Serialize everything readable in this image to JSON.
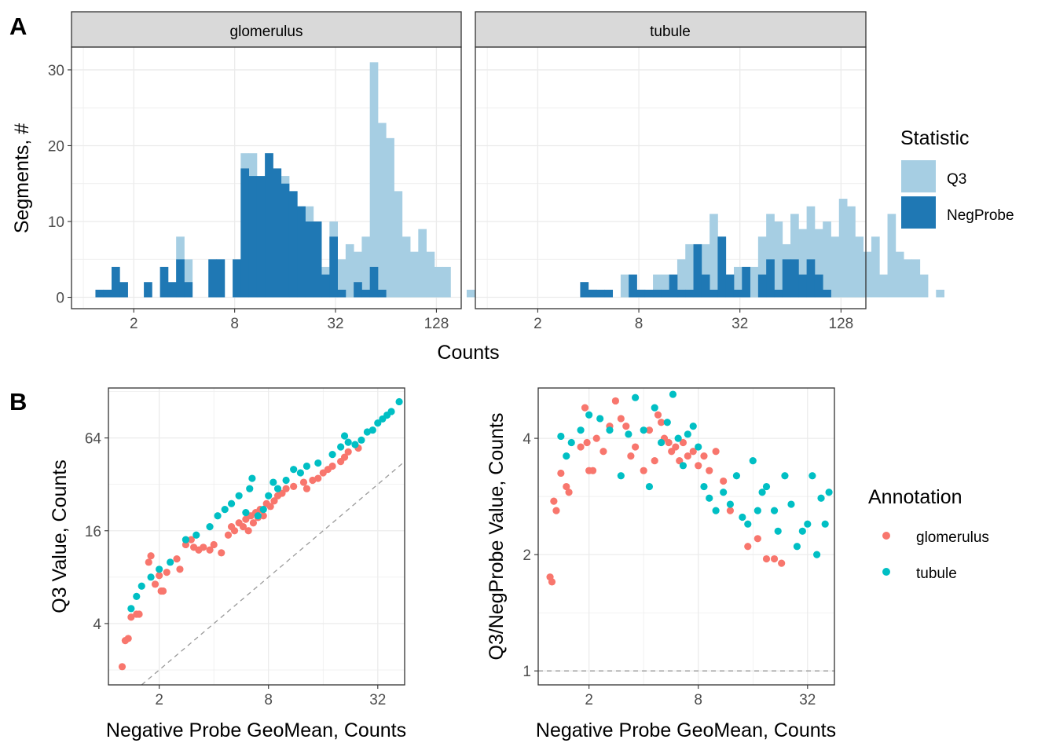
{
  "panel_tags": [
    "A",
    "B"
  ],
  "colors": {
    "Q3": "#a6cee3",
    "NegProbe": "#1f78b4",
    "glomerulus": "#f8766d",
    "tubule": "#00bfc4",
    "grid": "#ebebeb",
    "strip_bg": "#d9d9d9",
    "reference_line": "#999999"
  },
  "chart_data": [
    {
      "type": "histogram",
      "panel": "A",
      "xlabel": "Counts",
      "ylabel": "Segments, #",
      "x_scale": "log2",
      "xlim": [
        0.85,
        180
      ],
      "ylim": [
        -1.5,
        33
      ],
      "x_ticks": [
        2,
        8,
        32,
        128
      ],
      "y_ticks": [
        0,
        10,
        20,
        30
      ],
      "grid": true,
      "bin_log2_width": 0.16,
      "bin_log2_start": 0.24,
      "legend": {
        "title": "Statistic",
        "entries": [
          "Q3",
          "NegProbe"
        ],
        "position": "right"
      },
      "facets": [
        {
          "name": "glomerulus",
          "series": [
            {
              "name": "Q3",
              "counts": [
                0,
                0,
                0,
                0,
                0,
                0,
                0,
                0,
                0,
                0,
                8,
                5,
                0,
                0,
                5,
                5,
                0,
                0,
                19,
                19,
                15,
                19,
                17,
                16,
                14,
                12,
                12,
                10,
                4,
                10,
                5,
                7,
                6,
                8,
                31,
                23,
                21,
                14,
                8,
                6,
                9,
                6,
                4,
                4,
                0,
                0,
                1
              ]
            },
            {
              "name": "NegProbe",
              "counts": [
                1,
                1,
                4,
                2,
                0,
                0,
                2,
                0,
                4,
                2,
                5,
                2,
                0,
                0,
                5,
                5,
                0,
                5,
                17,
                16,
                16,
                19,
                17,
                15,
                14,
                12,
                10,
                10,
                3,
                8,
                1,
                0,
                2,
                1,
                4,
                1,
                0,
                0,
                0,
                0,
                0,
                0,
                0,
                0,
                0,
                0,
                0
              ]
            }
          ]
        },
        {
          "name": "tubule",
          "series": [
            {
              "name": "Q3",
              "counts": [
                0,
                0,
                0,
                0,
                0,
                0,
                0,
                0,
                0,
                0,
                2,
                1,
                0,
                0,
                0,
                3,
                1,
                1,
                0,
                3,
                3,
                2,
                5,
                7,
                5,
                7,
                11,
                8,
                3,
                4,
                4,
                4,
                8,
                11,
                10,
                7,
                11,
                9,
                12,
                9,
                10,
                8,
                13,
                12,
                8,
                6,
                8,
                3,
                11,
                6,
                5,
                5,
                3,
                0,
                1
              ]
            },
            {
              "name": "NegProbe",
              "counts": [
                0,
                0,
                0,
                0,
                0,
                0,
                0,
                0,
                0,
                0,
                2,
                1,
                1,
                1,
                0,
                0,
                3,
                1,
                1,
                1,
                1,
                3,
                1,
                1,
                7,
                3,
                1,
                8,
                3,
                1,
                4,
                0,
                3,
                5,
                1,
                5,
                5,
                3,
                5,
                3,
                1,
                0,
                0,
                0,
                0,
                0,
                0,
                0,
                0,
                0,
                0,
                0,
                0,
                0,
                0
              ]
            }
          ]
        }
      ]
    },
    {
      "type": "scatter",
      "panel": "B-left",
      "xlabel": "Negative Probe GeoMean, Counts",
      "ylabel": "Q3 Value, Counts",
      "x_scale": "log2",
      "y_scale": "log2",
      "xlim": [
        1.05,
        45
      ],
      "ylim": [
        1.6,
        135
      ],
      "x_ticks": [
        2,
        8,
        32
      ],
      "y_ticks": [
        4,
        16,
        64
      ],
      "grid": true,
      "reference_line": {
        "slope": 1,
        "intercept": 0,
        "style": "dashed"
      },
      "legend": {
        "title": "Annotation",
        "entries": [
          "glomerulus",
          "tubule"
        ],
        "position": "right"
      },
      "series": [
        {
          "name": "glomerulus",
          "points": [
            [
              1.25,
              2.1
            ],
            [
              1.3,
              3.1
            ],
            [
              1.35,
              3.2
            ],
            [
              1.4,
              4.4
            ],
            [
              1.5,
              4.6
            ],
            [
              1.55,
              4.6
            ],
            [
              1.75,
              10
            ],
            [
              1.8,
              11
            ],
            [
              1.9,
              7.2
            ],
            [
              2,
              8.2
            ],
            [
              2.05,
              6.5
            ],
            [
              2.1,
              6.5
            ],
            [
              2.2,
              8.6
            ],
            [
              2.5,
              10.5
            ],
            [
              2.6,
              9
            ],
            [
              2.8,
              13
            ],
            [
              3,
              14
            ],
            [
              3.1,
              12.5
            ],
            [
              3.3,
              12
            ],
            [
              3.5,
              12.5
            ],
            [
              3.8,
              12
            ],
            [
              4,
              13
            ],
            [
              4.4,
              11.5
            ],
            [
              4.8,
              15
            ],
            [
              5,
              17
            ],
            [
              5.2,
              16
            ],
            [
              5.5,
              18
            ],
            [
              5.8,
              17
            ],
            [
              6,
              19
            ],
            [
              6.2,
              16
            ],
            [
              6.4,
              20
            ],
            [
              6.6,
              18
            ],
            [
              6.8,
              21
            ],
            [
              7,
              19.5
            ],
            [
              7.2,
              22
            ],
            [
              7.5,
              20
            ],
            [
              7.8,
              24
            ],
            [
              8.2,
              23
            ],
            [
              8.6,
              25
            ],
            [
              9,
              27
            ],
            [
              9.5,
              28
            ],
            [
              10,
              30
            ],
            [
              11,
              31
            ],
            [
              12.5,
              33
            ],
            [
              13,
              30
            ],
            [
              14,
              34
            ],
            [
              15,
              35
            ],
            [
              16,
              38
            ],
            [
              17,
              40
            ],
            [
              18,
              42
            ],
            [
              20,
              45
            ],
            [
              21,
              48
            ],
            [
              22,
              52
            ],
            [
              25,
              55
            ]
          ]
        },
        {
          "name": "tubule",
          "points": [
            [
              1.4,
              5
            ],
            [
              1.5,
              6
            ],
            [
              1.6,
              7
            ],
            [
              1.8,
              8
            ],
            [
              2,
              9
            ],
            [
              2.3,
              10
            ],
            [
              2.8,
              14
            ],
            [
              3.2,
              15
            ],
            [
              3.8,
              17
            ],
            [
              4.2,
              20
            ],
            [
              4.6,
              22
            ],
            [
              5,
              24
            ],
            [
              5.5,
              27
            ],
            [
              6,
              21
            ],
            [
              6.3,
              30
            ],
            [
              6.5,
              35
            ],
            [
              7,
              20
            ],
            [
              7.5,
              22
            ],
            [
              8,
              27
            ],
            [
              8.5,
              33
            ],
            [
              9,
              30
            ],
            [
              10,
              34
            ],
            [
              11,
              40
            ],
            [
              12,
              38
            ],
            [
              13,
              42
            ],
            [
              15,
              44
            ],
            [
              18,
              50
            ],
            [
              20,
              56
            ],
            [
              21,
              66
            ],
            [
              22,
              60
            ],
            [
              24,
              58
            ],
            [
              26,
              62
            ],
            [
              28,
              70
            ],
            [
              30,
              72
            ],
            [
              32,
              80
            ],
            [
              34,
              85
            ],
            [
              36,
              90
            ],
            [
              38,
              95
            ],
            [
              42,
              110
            ]
          ]
        }
      ]
    },
    {
      "type": "scatter",
      "panel": "B-right",
      "xlabel": "Negative Probe GeoMean, Counts",
      "ylabel": "Q3/NegProbe Value, Counts",
      "x_scale": "log2",
      "y_scale": "log2",
      "xlim": [
        1.05,
        45
      ],
      "ylim": [
        0.92,
        5.4
      ],
      "x_ticks": [
        2,
        8,
        32
      ],
      "y_ticks": [
        1,
        2,
        4
      ],
      "grid": true,
      "reference_line": {
        "y": 1,
        "style": "dashed"
      },
      "series": [
        {
          "name": "glomerulus",
          "points": [
            [
              1.22,
              1.75
            ],
            [
              1.25,
              1.7
            ],
            [
              1.28,
              2.75
            ],
            [
              1.32,
              2.6
            ],
            [
              1.4,
              3.25
            ],
            [
              1.5,
              3.0
            ],
            [
              1.55,
              2.9
            ],
            [
              1.8,
              3.8
            ],
            [
              1.9,
              4.8
            ],
            [
              1.95,
              3.9
            ],
            [
              2.0,
              3.3
            ],
            [
              2.1,
              3.3
            ],
            [
              2.2,
              4.0
            ],
            [
              2.4,
              3.7
            ],
            [
              2.6,
              4.3
            ],
            [
              2.8,
              5.0
            ],
            [
              3.0,
              4.5
            ],
            [
              3.2,
              4.3
            ],
            [
              3.4,
              3.6
            ],
            [
              3.6,
              3.8
            ],
            [
              4.0,
              3.3
            ],
            [
              4.3,
              4.2
            ],
            [
              4.6,
              3.5
            ],
            [
              4.8,
              4.6
            ],
            [
              5.0,
              4.4
            ],
            [
              5.2,
              4.0
            ],
            [
              5.5,
              3.9
            ],
            [
              5.7,
              3.7
            ],
            [
              6.0,
              3.8
            ],
            [
              6.3,
              3.5
            ],
            [
              6.6,
              3.9
            ],
            [
              7.0,
              3.6
            ],
            [
              7.5,
              3.7
            ],
            [
              8.0,
              3.4
            ],
            [
              8.6,
              3.6
            ],
            [
              9.2,
              3.3
            ],
            [
              10,
              3.7
            ],
            [
              11,
              3.1
            ],
            [
              12,
              2.6
            ],
            [
              15,
              2.1
            ],
            [
              17,
              2.2
            ],
            [
              19,
              1.95
            ],
            [
              21,
              1.95
            ],
            [
              23,
              1.9
            ]
          ]
        },
        {
          "name": "tubule",
          "points": [
            [
              1.4,
              4.05
            ],
            [
              1.5,
              3.6
            ],
            [
              1.6,
              3.9
            ],
            [
              1.8,
              4.2
            ],
            [
              2,
              4.6
            ],
            [
              2.3,
              4.5
            ],
            [
              2.6,
              4.2
            ],
            [
              3.0,
              3.2
            ],
            [
              3.3,
              4.1
            ],
            [
              3.6,
              5.1
            ],
            [
              4.0,
              4.2
            ],
            [
              4.3,
              3.0
            ],
            [
              4.6,
              4.8
            ],
            [
              5.0,
              3.9
            ],
            [
              5.4,
              4.4
            ],
            [
              5.8,
              5.2
            ],
            [
              6.2,
              4.0
            ],
            [
              6.6,
              3.4
            ],
            [
              7,
              4.1
            ],
            [
              7.5,
              4.3
            ],
            [
              8,
              3.8
            ],
            [
              8.6,
              3.0
            ],
            [
              9.2,
              2.8
            ],
            [
              10,
              2.6
            ],
            [
              11,
              2.9
            ],
            [
              12,
              2.7
            ],
            [
              13,
              3.2
            ],
            [
              14,
              2.5
            ],
            [
              15,
              2.4
            ],
            [
              16,
              3.5
            ],
            [
              17,
              2.6
            ],
            [
              18,
              2.9
            ],
            [
              19,
              3.0
            ],
            [
              21,
              2.6
            ],
            [
              22,
              2.3
            ],
            [
              24,
              3.2
            ],
            [
              26,
              2.7
            ],
            [
              28,
              2.1
            ],
            [
              30,
              2.3
            ],
            [
              32,
              2.4
            ],
            [
              34,
              3.2
            ],
            [
              36,
              2.0
            ],
            [
              38,
              2.8
            ],
            [
              40,
              2.4
            ],
            [
              42,
              2.9
            ]
          ]
        }
      ]
    }
  ]
}
